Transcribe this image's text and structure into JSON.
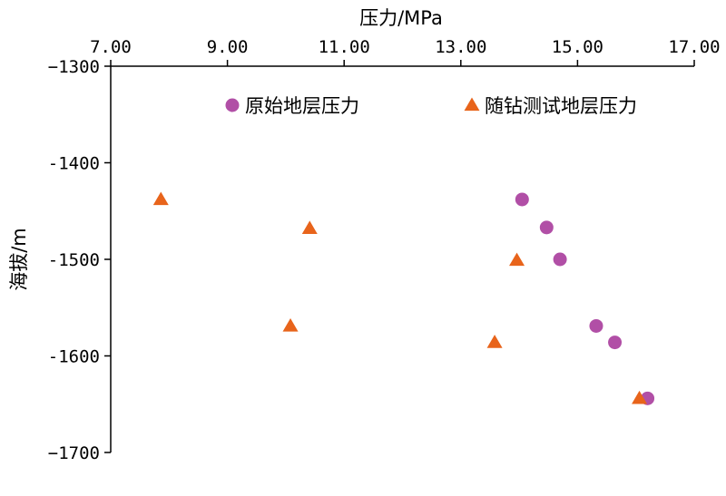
{
  "chart_data": {
    "type": "scatter",
    "title": "",
    "xlabel": "压力/MPa",
    "ylabel": "海拔/m",
    "x_axis_position": "top",
    "xlim": [
      7.0,
      17.0
    ],
    "ylim": [
      -1700,
      -1300
    ],
    "x_ticks": [
      "7.00",
      "9.00",
      "11.00",
      "13.00",
      "15.00",
      "17.00"
    ],
    "y_ticks": [
      "−1300",
      "-1400",
      "-1500",
      "-1600",
      "−1700"
    ],
    "grid": false,
    "legend_position": "top",
    "series": [
      {
        "name": "原始地层压力",
        "marker": "circle",
        "color": "#b14fa6",
        "points": [
          {
            "x": 14.05,
            "y": -1438
          },
          {
            "x": 14.47,
            "y": -1467
          },
          {
            "x": 14.7,
            "y": -1500
          },
          {
            "x": 15.32,
            "y": -1569
          },
          {
            "x": 15.64,
            "y": -1586
          },
          {
            "x": 16.2,
            "y": -1644
          }
        ]
      },
      {
        "name": "随钻测试地层压力",
        "marker": "triangle",
        "color": "#e8641b",
        "points": [
          {
            "x": 7.86,
            "y": -1438
          },
          {
            "x": 10.41,
            "y": -1468
          },
          {
            "x": 13.96,
            "y": -1501
          },
          {
            "x": 10.08,
            "y": -1569
          },
          {
            "x": 13.58,
            "y": -1586
          },
          {
            "x": 16.06,
            "y": -1644
          }
        ]
      }
    ]
  }
}
